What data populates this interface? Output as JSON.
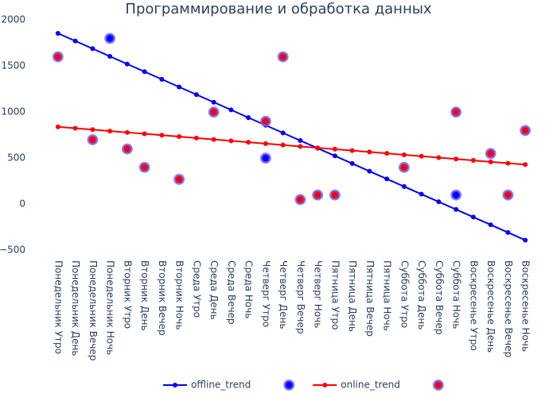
{
  "chart_data": {
    "type": "line",
    "title": "Программирование и обработка данных",
    "categories": [
      "Понедельник Утро",
      "Понедельник День",
      "Понедельник Вечер",
      "Понедельник Ночь",
      "Вторник Утро",
      "Вторник День",
      "Вторник Вечер",
      "Вторник Ночь",
      "Среда Утро",
      "Среда День",
      "Среда Вечер",
      "Среда Ночь",
      "Четверг Утро",
      "Четверг День",
      "Четверг Вечер",
      "Четверг Ночь",
      "Пятница Утро",
      "Пятница День",
      "Пятница Вечер",
      "Пятница Ночь",
      "Суббота Утро",
      "Суббота День",
      "Суббота Вечер",
      "Суббота Ночь",
      "Воскресенье Утро",
      "Воскресенье День",
      "Воскресенье Вечер",
      "Воскресенье Ночь"
    ],
    "series": [
      {
        "name": "offline_trend",
        "color": "blue",
        "mode": "lines+markers",
        "values": [
          1855,
          1772,
          1689,
          1605,
          1522,
          1439,
          1356,
          1273,
          1190,
          1107,
          1024,
          940,
          857,
          774,
          691,
          608,
          525,
          442,
          358,
          275,
          192,
          109,
          26,
          -57,
          -140,
          -223,
          -307,
          -390
        ]
      },
      {
        "color": "blue",
        "mode": "markers",
        "values": [
          null,
          null,
          null,
          1800,
          null,
          null,
          null,
          null,
          null,
          null,
          null,
          null,
          500,
          null,
          null,
          null,
          null,
          null,
          null,
          null,
          null,
          null,
          null,
          100,
          null,
          null,
          null,
          null
        ]
      },
      {
        "name": "online_trend",
        "color": "red",
        "mode": "lines+markers",
        "values": [
          840,
          825,
          810,
          794,
          779,
          764,
          749,
          734,
          718,
          703,
          688,
          673,
          658,
          643,
          627,
          612,
          597,
          582,
          567,
          552,
          536,
          521,
          506,
          491,
          476,
          460,
          445,
          430
        ]
      },
      {
        "color": "red",
        "mode": "markers",
        "values": [
          1600,
          null,
          700,
          null,
          600,
          400,
          null,
          270,
          null,
          1000,
          null,
          null,
          900,
          1600,
          50,
          100,
          100,
          null,
          null,
          null,
          400,
          null,
          null,
          1000,
          null,
          550,
          100,
          800
        ]
      }
    ],
    "ylim": [
      -550,
      2010
    ],
    "yticks": [
      {
        "value": -500,
        "label": "−500"
      },
      0,
      500,
      1000,
      1500,
      2000
    ],
    "grid": false,
    "legend": "bottom"
  }
}
